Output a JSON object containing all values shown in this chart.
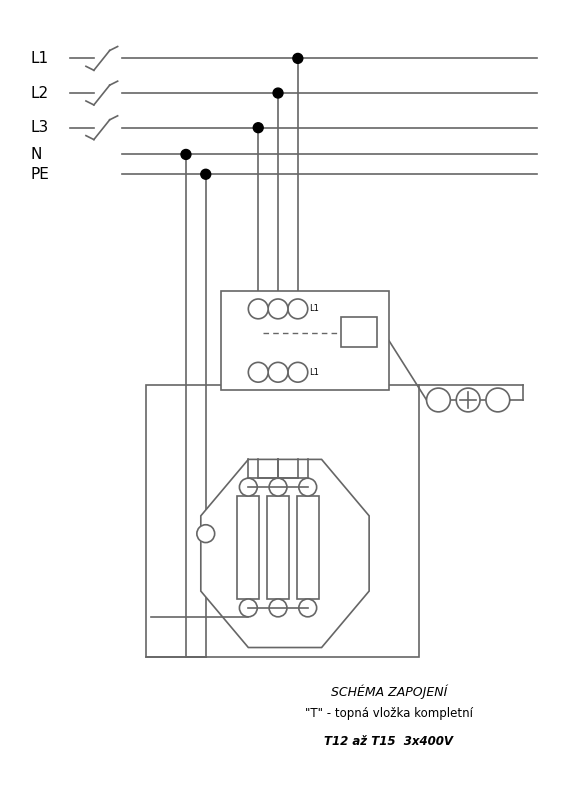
{
  "title": "SCHÉMA ZAPOJENÍ",
  "subtitle1": "\"T\" - topná vložka kompletní",
  "subtitle2": "T12 až T15  3x400V",
  "bg_color": "#ffffff",
  "line_color": "#666666",
  "text_color": "#000000",
  "labels": [
    "L1",
    "L2",
    "L3",
    "N",
    "PE"
  ],
  "figsize": [
    5.63,
    7.97
  ],
  "dpi": 100
}
